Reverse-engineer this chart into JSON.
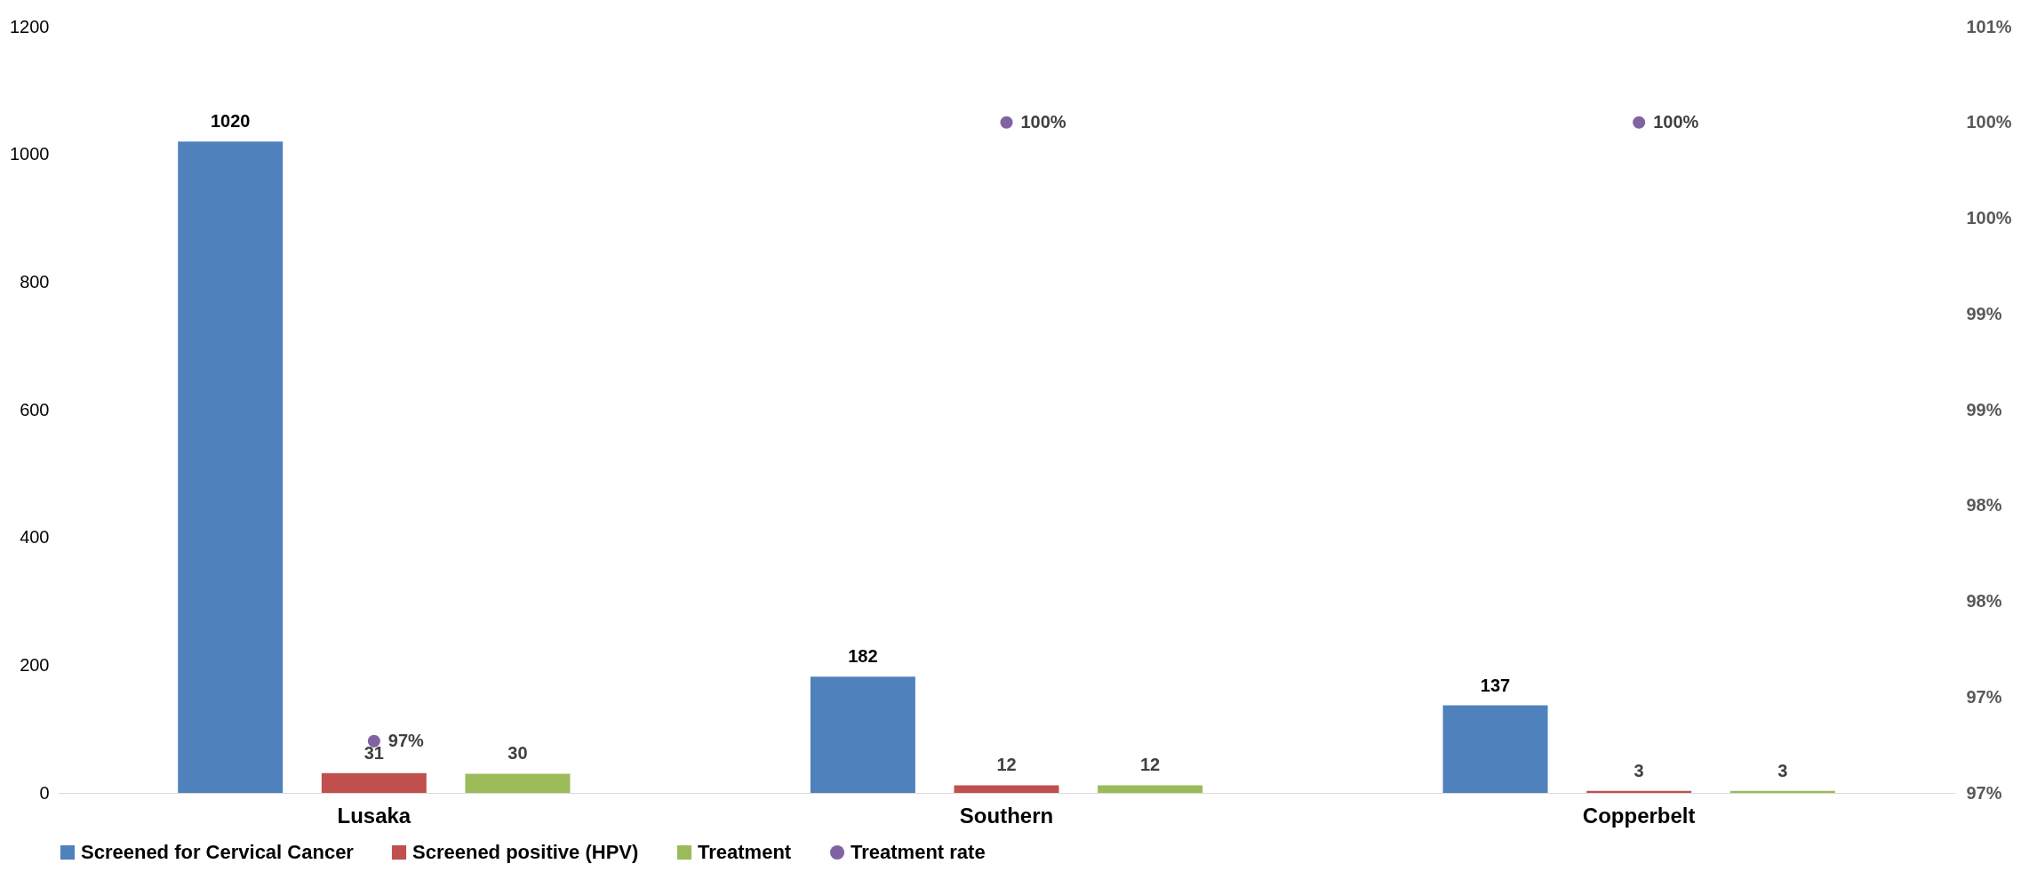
{
  "chart_data": {
    "type": "bar",
    "categories": [
      "Lusaka",
      "Southern",
      "Copperbelt"
    ],
    "series": [
      {
        "name": "Screened for Cervical Cancer",
        "color": "#4f81bd",
        "values": [
          1020,
          182,
          137
        ]
      },
      {
        "name": "Screened positive (HPV)",
        "color": "#c0504d",
        "values": [
          31,
          12,
          3
        ]
      },
      {
        "name": "Treatment",
        "color": "#9bbb59",
        "values": [
          30,
          12,
          3
        ]
      },
      {
        "name": "Treatment rate",
        "type": "scatter",
        "axis": "y2",
        "color": "#8064a2",
        "values": [
          96.77,
          100,
          100
        ],
        "value_labels": [
          "97%",
          "100%",
          "100%"
        ]
      }
    ],
    "data_labels": true,
    "ylim": [
      0,
      1200
    ],
    "yticks": [
      0,
      200,
      400,
      600,
      800,
      1000,
      1200
    ],
    "y2lim": [
      96.5,
      100.5
    ],
    "y2ticks": [
      {
        "value": 96.5,
        "label": "97%"
      },
      {
        "value": 97,
        "label": "97%"
      },
      {
        "value": 97.5,
        "label": "98%"
      },
      {
        "value": 98,
        "label": "98%"
      },
      {
        "value": 98.5,
        "label": "99%"
      },
      {
        "value": 99,
        "label": "99%"
      },
      {
        "value": 99.5,
        "label": "100%"
      },
      {
        "value": 100,
        "label": "100%"
      },
      {
        "value": 100.5,
        "label": "101%"
      }
    ],
    "grid": false,
    "legend": "bottom",
    "marker": "circle"
  }
}
